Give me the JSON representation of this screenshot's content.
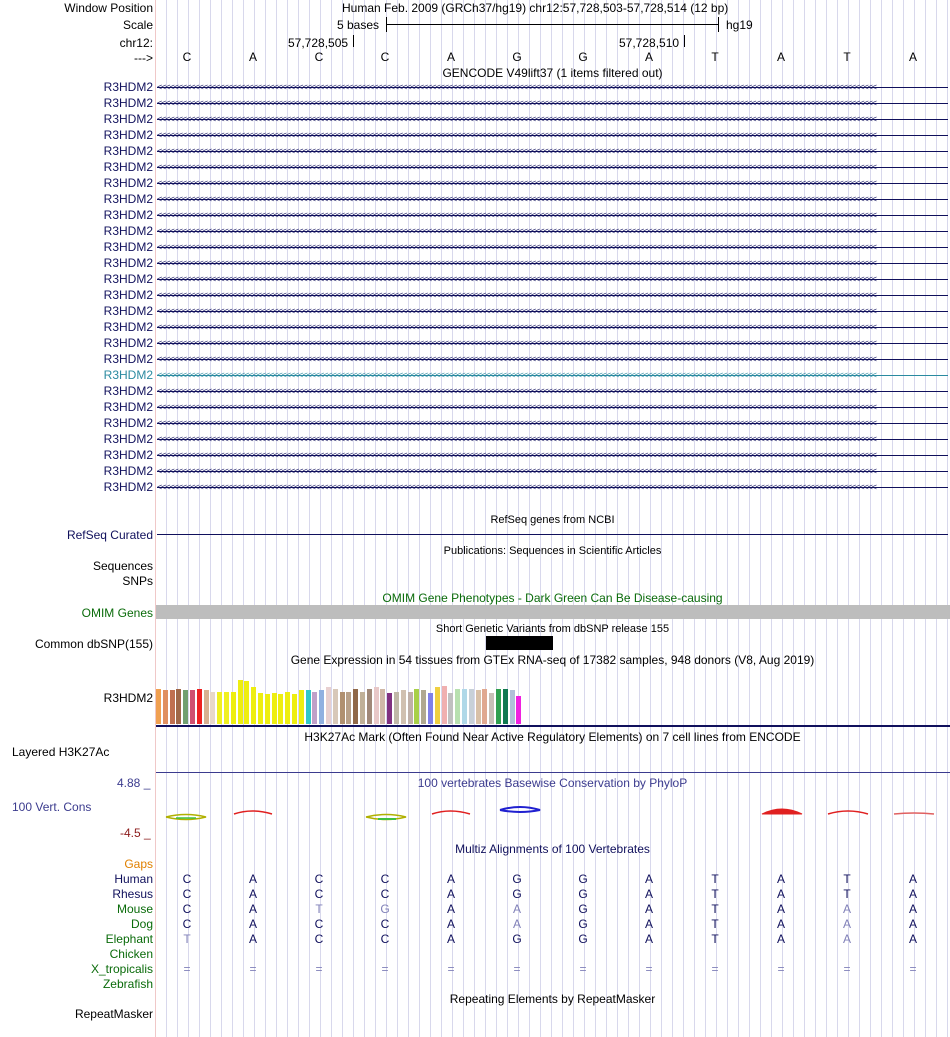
{
  "header": {
    "window_position_label": "Window Position",
    "window_position_value": "Human Feb. 2009 (GRCh37/hg19)   chr12:57,728,503-57,728,514 (12 bp)",
    "scale_label": "Scale",
    "scale_value": "5 bases",
    "scale_assembly": "hg19",
    "chrom_label": "chr12:",
    "pos_tick_1": "57,728,505",
    "pos_tick_2": "57,728,510",
    "strand_label": "--->"
  },
  "sequence": [
    "C",
    "A",
    "C",
    "C",
    "A",
    "G",
    "G",
    "A",
    "T",
    "A",
    "T",
    "A"
  ],
  "gencode": {
    "title": "GENCODE V49lift37 (1 items filtered out)",
    "genes": [
      "R3HDM2",
      "R3HDM2",
      "R3HDM2",
      "R3HDM2",
      "R3HDM2",
      "R3HDM2",
      "R3HDM2",
      "R3HDM2",
      "R3HDM2",
      "R3HDM2",
      "R3HDM2",
      "R3HDM2",
      "R3HDM2",
      "R3HDM2",
      "R3HDM2",
      "R3HDM2",
      "R3HDM2",
      "R3HDM2",
      "R3HDM2",
      "R3HDM2",
      "R3HDM2",
      "R3HDM2",
      "R3HDM2",
      "R3HDM2",
      "R3HDM2",
      "R3HDM2"
    ],
    "highlighted_index": 18,
    "chevrons": "<<<<<<<<<<<<<<<<<<<<<<<<<<<<<<<<<<<<<<<<<<<<<<<<<<<<<<<<<<<<<<<<<<<<<<<<<<<<<<<<<<<<<<<<<<<<<<<<<<<<<<<<<<<<<<<<<<<<<<<<<<<<<<<<<<<<<<<<<<<<<<<<<<<<<<<<<<<<<<<<<<<<<<<<<<<<<"
  },
  "refseq": {
    "title": "RefSeq genes from NCBI",
    "label": "RefSeq Curated"
  },
  "publications": {
    "title": "Publications: Sequences in Scientific Articles",
    "label_1": "Sequences",
    "label_2": "SNPs"
  },
  "omim": {
    "title": "OMIM Gene Phenotypes - Dark Green Can Be Disease-causing",
    "label": "OMIM Genes"
  },
  "dbsnp": {
    "title": "Short Genetic Variants from dbSNP release 155",
    "label": "Common dbSNP(155)"
  },
  "gtex": {
    "title": "Gene Expression in 54 tissues from GTEx RNA-seq of 17382 samples, 948 donors (V8, Aug 2019)",
    "label": "R3HDM2",
    "bars": [
      {
        "c": "#f0a050",
        "v": 0.62
      },
      {
        "c": "#e09060",
        "v": 0.6
      },
      {
        "c": "#c07050",
        "v": 0.6
      },
      {
        "c": "#a06848",
        "v": 0.62
      },
      {
        "c": "#70a070",
        "v": 0.6
      },
      {
        "c": "#d05070",
        "v": 0.6
      },
      {
        "c": "#ee2020",
        "v": 0.62
      },
      {
        "c": "#d8b090",
        "v": 0.6
      },
      {
        "c": "#e8d8c8",
        "v": 0.58
      },
      {
        "c": "#f0f020",
        "v": 0.58
      },
      {
        "c": "#f0f020",
        "v": 0.58
      },
      {
        "c": "#eeee10",
        "v": 0.58
      },
      {
        "c": "#eeee10",
        "v": 0.78
      },
      {
        "c": "#eeee10",
        "v": 0.76
      },
      {
        "c": "#eeee10",
        "v": 0.66
      },
      {
        "c": "#eeee10",
        "v": 0.56
      },
      {
        "c": "#eeee10",
        "v": 0.54
      },
      {
        "c": "#eeee10",
        "v": 0.56
      },
      {
        "c": "#eeee10",
        "v": 0.54
      },
      {
        "c": "#eeee10",
        "v": 0.58
      },
      {
        "c": "#eeee10",
        "v": 0.54
      },
      {
        "c": "#eeee10",
        "v": 0.6
      },
      {
        "c": "#30c8c8",
        "v": 0.6
      },
      {
        "c": "#c0a0c8",
        "v": 0.58
      },
      {
        "c": "#90b0e0",
        "v": 0.6
      },
      {
        "c": "#e8d0d0",
        "v": 0.66
      },
      {
        "c": "#d8c8b8",
        "v": 0.62
      },
      {
        "c": "#b09070",
        "v": 0.58
      },
      {
        "c": "#b8a088",
        "v": 0.58
      },
      {
        "c": "#906848",
        "v": 0.62
      },
      {
        "c": "#c0b098",
        "v": 0.58
      },
      {
        "c": "#a08878",
        "v": 0.62
      },
      {
        "c": "#e8c8c8",
        "v": 0.66
      },
      {
        "c": "#d0b8a8",
        "v": 0.62
      },
      {
        "c": "#803080",
        "v": 0.56
      },
      {
        "c": "#c0b8a8",
        "v": 0.58
      },
      {
        "c": "#d0c0b0",
        "v": 0.6
      },
      {
        "c": "#c0b0a8",
        "v": 0.58
      },
      {
        "c": "#a8d048",
        "v": 0.62
      },
      {
        "c": "#b0a890",
        "v": 0.6
      },
      {
        "c": "#8080e8",
        "v": 0.56
      },
      {
        "c": "#f0d040",
        "v": 0.66
      },
      {
        "c": "#f0b0b0",
        "v": 0.68
      },
      {
        "c": "#c0c0c0",
        "v": 0.56
      },
      {
        "c": "#b8e0b0",
        "v": 0.62
      },
      {
        "c": "#b0d8e8",
        "v": 0.62
      },
      {
        "c": "#c8d0d8",
        "v": 0.62
      },
      {
        "c": "#d8c0a8",
        "v": 0.6
      },
      {
        "c": "#e0a890",
        "v": 0.62
      },
      {
        "c": "#c8c0b8",
        "v": 0.56
      },
      {
        "c": "#30a050",
        "v": 0.62
      },
      {
        "c": "#107850",
        "v": 0.62
      },
      {
        "c": "#b0c0d8",
        "v": 0.6
      },
      {
        "c": "#f020e0",
        "v": 0.5
      }
    ]
  },
  "h3k27ac": {
    "title": "H3K27Ac Mark (Often Found Near Active Regulatory Elements) on 7 cell lines from ENCODE",
    "label": "Layered H3K27Ac"
  },
  "conservation": {
    "title": "100 vertebrates Basewise Conservation by PhyloP",
    "label": "100 Vert. Cons",
    "max": "4.88 _",
    "min": "-4.5 _"
  },
  "multiz": {
    "title": "Multiz Alignments of 100 Vertebrates",
    "gaps_label": "Gaps",
    "rows": [
      {
        "species": "Human",
        "bases": [
          "C",
          "A",
          "C",
          "C",
          "A",
          "G",
          "G",
          "A",
          "T",
          "A",
          "T",
          "A"
        ]
      },
      {
        "species": "Rhesus",
        "bases": [
          "C",
          "A",
          "C",
          "C",
          "A",
          "G",
          "G",
          "A",
          "T",
          "A",
          "T",
          "A"
        ]
      },
      {
        "species": "Mouse",
        "bases": [
          "C",
          "A",
          "T",
          "G",
          "A",
          "A",
          "G",
          "A",
          "T",
          "A",
          "A",
          "A"
        ]
      },
      {
        "species": "Dog",
        "bases": [
          "C",
          "A",
          "C",
          "C",
          "A",
          "A",
          "G",
          "A",
          "T",
          "A",
          "A",
          "A"
        ]
      },
      {
        "species": "Elephant",
        "bases": [
          "T",
          "A",
          "C",
          "C",
          "A",
          "G",
          "G",
          "A",
          "T",
          "A",
          "A",
          "A"
        ]
      },
      {
        "species": "Chicken",
        "bases": [
          "",
          "",
          "",
          "",
          "",
          "",
          "",
          "",
          "",
          "",
          "",
          ""
        ]
      },
      {
        "species": "X_tropicalis",
        "bases": [
          "=",
          "=",
          "=",
          "=",
          "=",
          "=",
          "=",
          "=",
          "=",
          "=",
          "=",
          "="
        ]
      },
      {
        "species": "Zebrafish",
        "bases": [
          "",
          "",
          "",
          "",
          "",
          "",
          "",
          "",
          "",
          "",
          "",
          ""
        ]
      }
    ]
  },
  "repeatmasker": {
    "title": "Repeating Elements by RepeatMasker",
    "label": "RepeatMasker"
  },
  "colors": {
    "navy": "#10105c",
    "green_label": "#0a6b0a",
    "gaps_label": "#e08000",
    "omim_bar": "#bdbdbd",
    "cons_label": "#3b3b8e",
    "cons_min": "#8b1a1a"
  }
}
